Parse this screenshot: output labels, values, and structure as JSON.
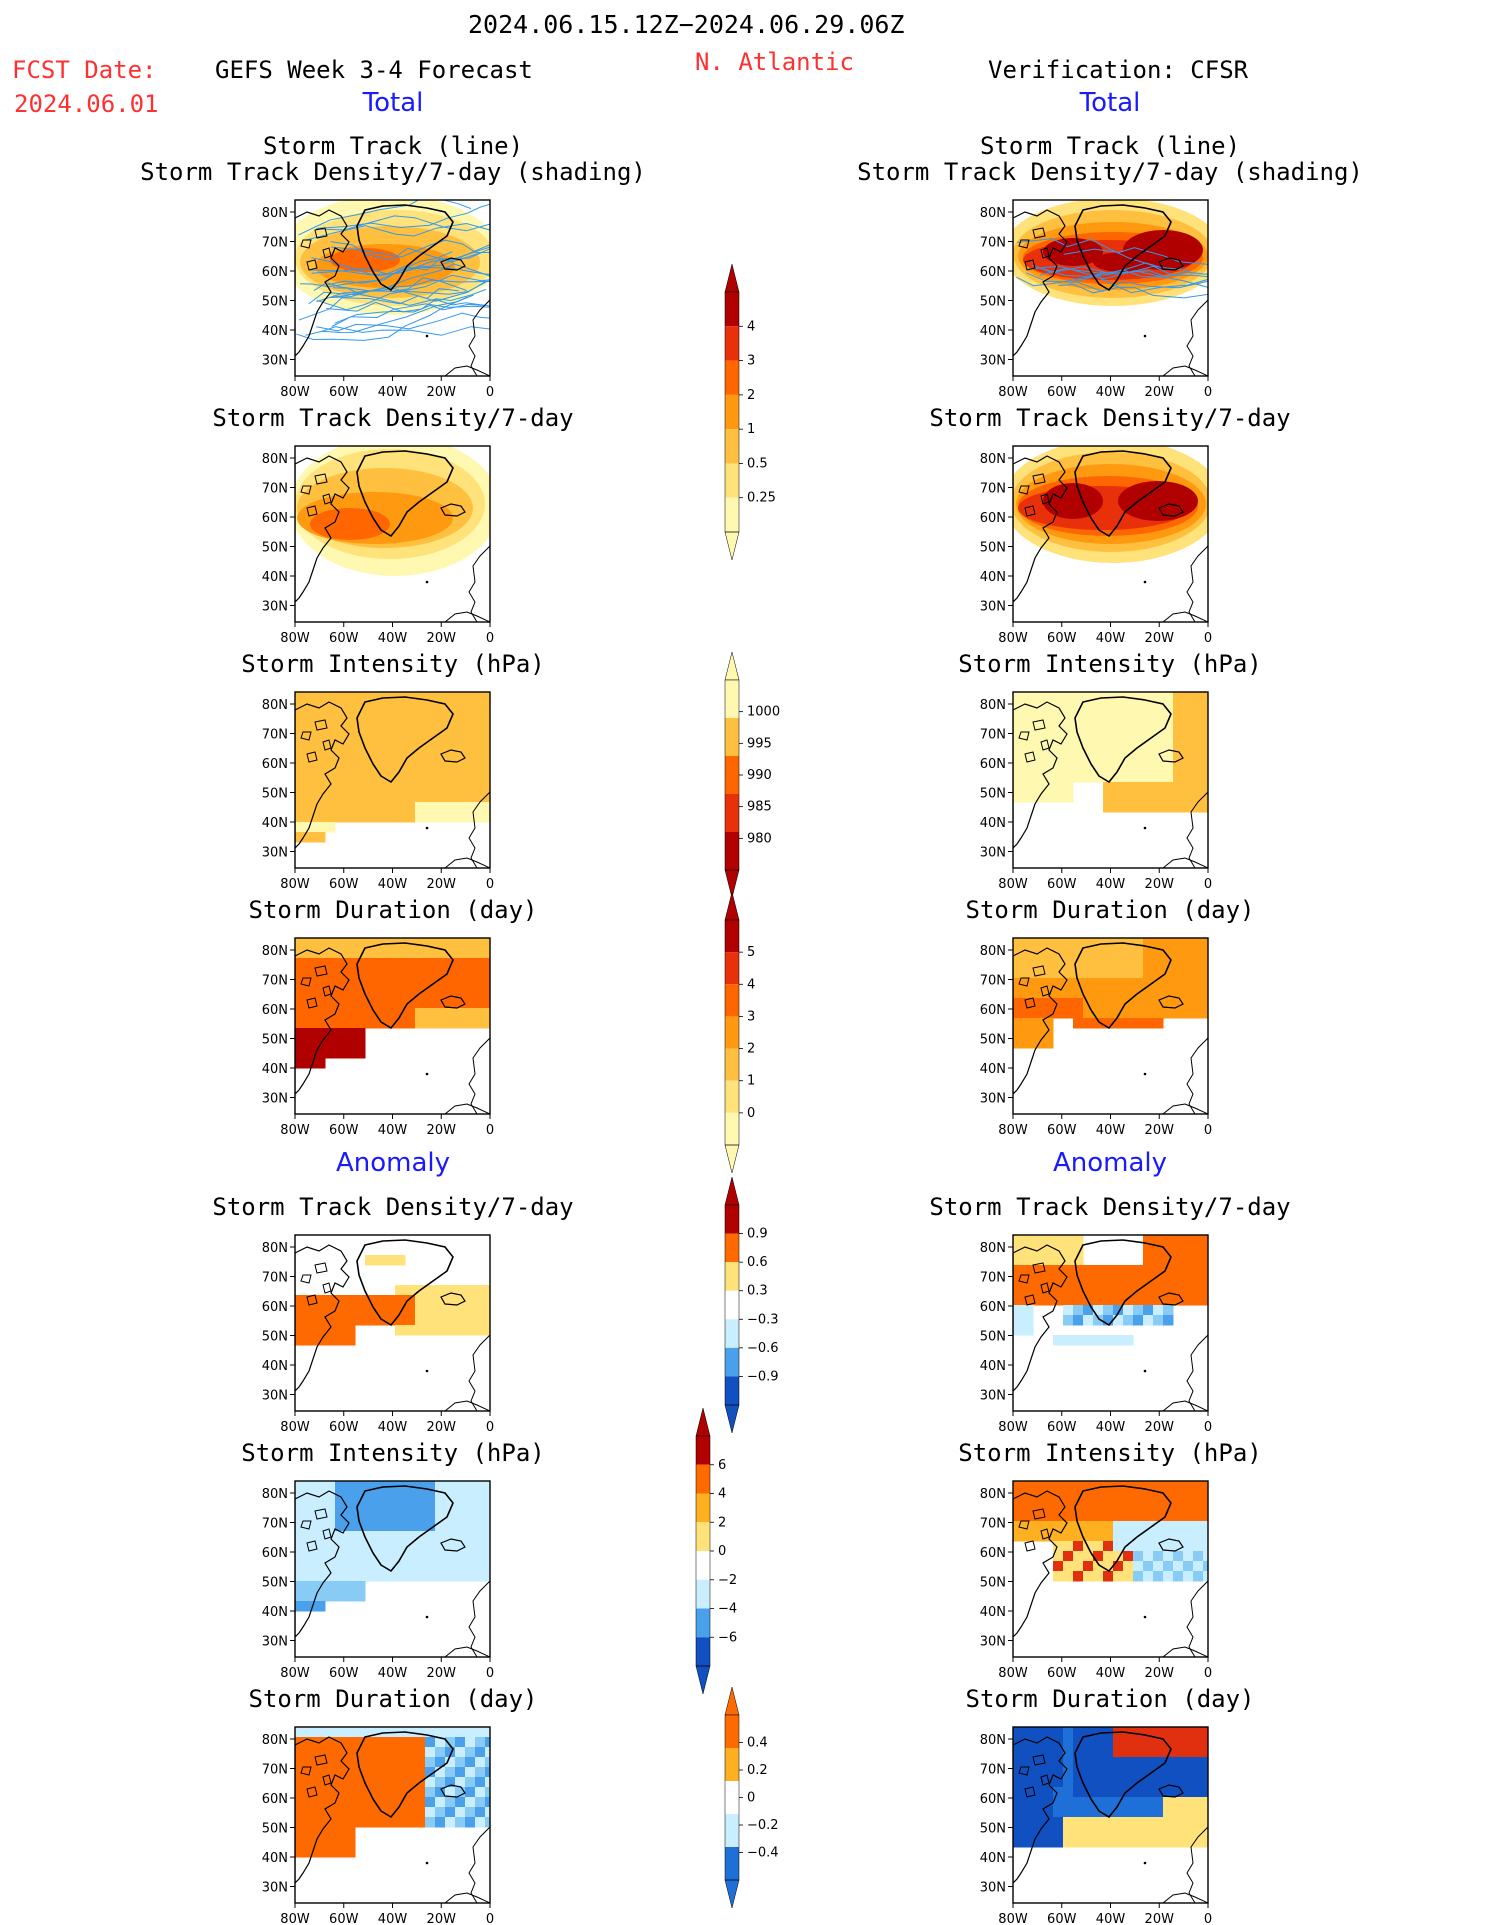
{
  "header": {
    "date_range": "2024.06.15.12Z−2024.06.29.06Z",
    "fcst_label": "FCST Date:",
    "fcst_date": "2024.06.01",
    "model": "GEFS Week 3-4 Forecast",
    "region": "N. Atlantic",
    "verification": "Verification: CFSR"
  },
  "sections": {
    "total": "Total",
    "anomaly": "Anomaly"
  },
  "panel_titles": {
    "track_line": "Storm Track (line)",
    "track_shading": "Storm Track Density/7-day (shading)",
    "density": "Storm Track Density/7-day",
    "intensity": "Storm Intensity (hPa)",
    "duration": "Storm Duration (day)"
  },
  "map_axes": {
    "lat_labels": [
      "80N",
      "70N",
      "60N",
      "50N",
      "40N",
      "30N"
    ],
    "lon_labels": [
      "80W",
      "60W",
      "40W",
      "20W",
      "0"
    ]
  },
  "colorbars": {
    "density_total": [
      "0.25",
      "0.5",
      "1",
      "2",
      "3",
      "4"
    ],
    "intensity_total": [
      "1000",
      "995",
      "990",
      "985",
      "980"
    ],
    "duration_total": [
      "0",
      "1",
      "2",
      "3",
      "4",
      "5"
    ],
    "density_anom": [
      "0.9",
      "0.6",
      "0.3",
      "−0.3",
      "−0.6",
      "−0.9"
    ],
    "intensity_anom": [
      "6",
      "4",
      "2",
      "0",
      "−2",
      "−4",
      "−6"
    ],
    "duration_anom": [
      "0.4",
      "0.2",
      "0",
      "−0.2",
      "−0.4"
    ]
  },
  "colors": {
    "track_line": "#3399ee",
    "warm_scale": [
      "#fff8b0",
      "#ffe27a",
      "#ffc040",
      "#ff9a10",
      "#ff6600",
      "#e8300a",
      "#b00000"
    ],
    "anom_pos": [
      "#ffe27a",
      "#ffb020",
      "#ff6a00",
      "#e03010",
      "#b00000"
    ],
    "anom_neg": [
      "#c8eeff",
      "#88ccf5",
      "#4aa0ea",
      "#1f6fd8",
      "#1050c0"
    ]
  }
}
